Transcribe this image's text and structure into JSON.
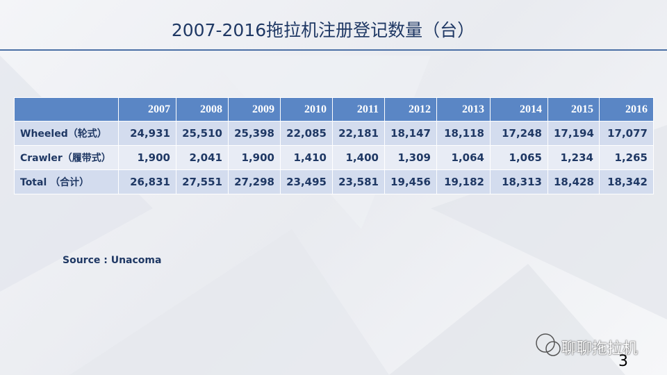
{
  "title": "2007-2016拖拉机注册登记数量（台）",
  "table": {
    "header": [
      "2007",
      "2008",
      "2009",
      "2010",
      "2011",
      "2012",
      "2013",
      "2014",
      "2015",
      "2016"
    ],
    "rows": [
      {
        "label": "Wheeled（轮式）",
        "values": [
          "24,931",
          "25,510",
          "25,398",
          "22,085",
          "22,181",
          "18,147",
          "18,118",
          "17,248",
          "17,194",
          "17,077"
        ]
      },
      {
        "label": "Crawler（履带式）",
        "values": [
          "1,900",
          "2,041",
          "1,900",
          "1,410",
          "1,400",
          "1,309",
          "1,064",
          "1,065",
          "1,234",
          "1,265"
        ]
      },
      {
        "label": "Total （合计）",
        "values": [
          "26,831",
          "27,551",
          "27,298",
          "23,495",
          "23,581",
          "19,456",
          "19,182",
          "18,313",
          "18,428",
          "18,342"
        ]
      }
    ]
  },
  "source": "Source : Unacoma",
  "watermark": "聊聊拖拉机",
  "page_number": "3"
}
